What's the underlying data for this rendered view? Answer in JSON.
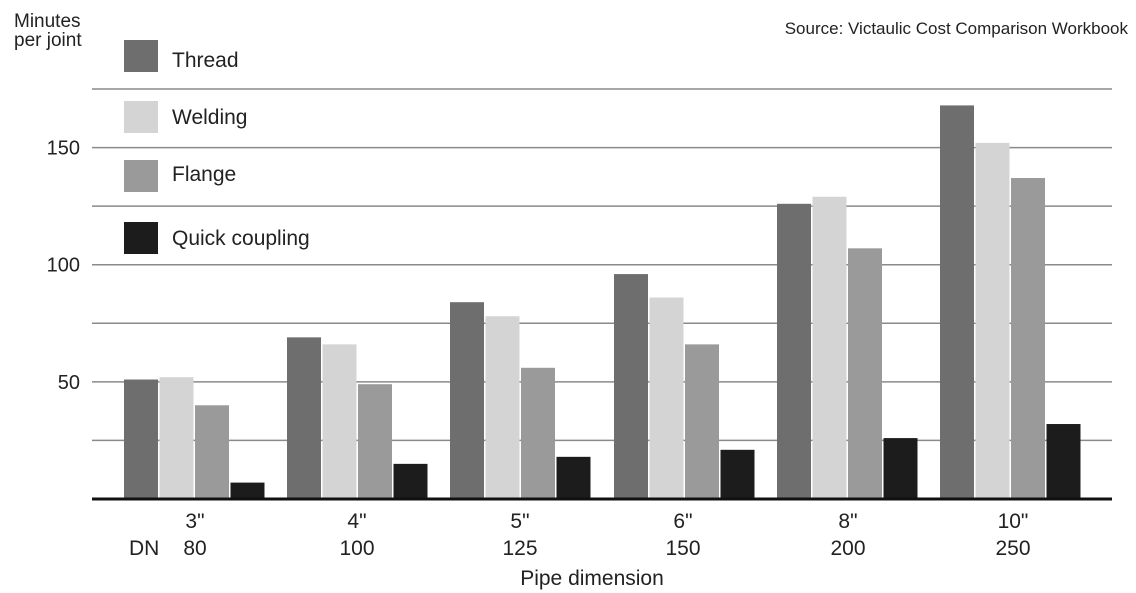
{
  "chart_data": {
    "type": "bar",
    "ylabel_lines": [
      "Minutes",
      "per joint"
    ],
    "xlabel": "Pipe dimension",
    "source": "Source: Victaulic Cost Comparison Workbook",
    "dn_label": "DN",
    "categories": [
      {
        "inch": "3\"",
        "dn": "80"
      },
      {
        "inch": "4\"",
        "dn": "100"
      },
      {
        "inch": "5\"",
        "dn": "125"
      },
      {
        "inch": "6\"",
        "dn": "150"
      },
      {
        "inch": "8\"",
        "dn": "200"
      },
      {
        "inch": "10\"",
        "dn": "250"
      }
    ],
    "series": [
      {
        "name": "Thread",
        "color": "#6e6e6e",
        "values": [
          51,
          69,
          84,
          96,
          126,
          168
        ]
      },
      {
        "name": "Welding",
        "color": "#d4d4d4",
        "values": [
          52,
          66,
          78,
          86,
          129,
          152
        ]
      },
      {
        "name": "Flange",
        "color": "#9a9a9a",
        "values": [
          40,
          49,
          56,
          66,
          107,
          137
        ]
      },
      {
        "name": "Quick coupling",
        "color": "#1c1c1c",
        "values": [
          7,
          15,
          18,
          21,
          26,
          32
        ]
      }
    ],
    "ylim": [
      0,
      175
    ],
    "yticks": [
      50,
      100,
      150
    ],
    "grid_step": 25,
    "grid": true,
    "legend_position": "top-left"
  }
}
